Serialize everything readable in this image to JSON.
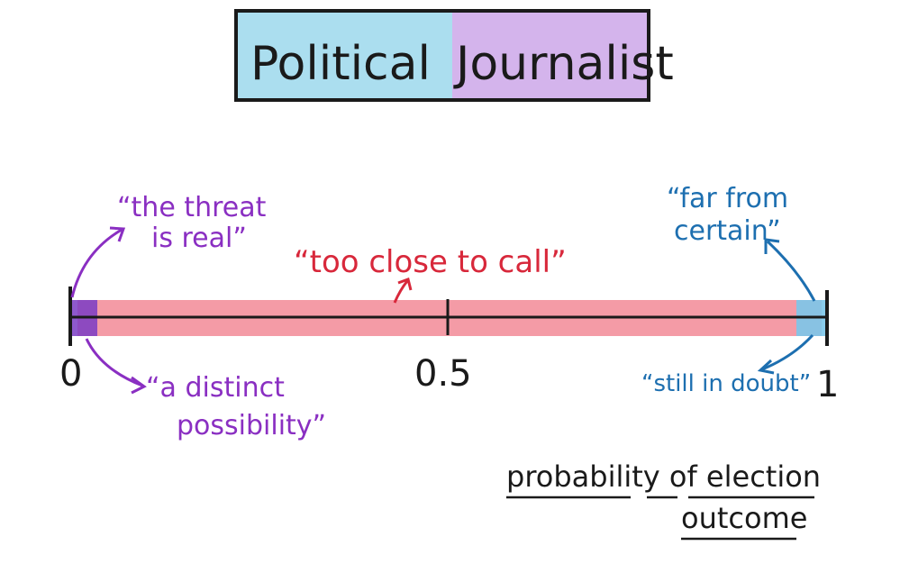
{
  "title": {
    "word1": "Political",
    "word2": "Journalist"
  },
  "colors": {
    "purple": "#8a2fc2",
    "blue": "#1d6fb0",
    "red": "#d8283b",
    "red_band": "#f28a96",
    "title_left_fill": "#8fd3ea",
    "title_right_fill": "#c59be6",
    "ink": "#1a1a1a"
  },
  "axis": {
    "label_left": "0",
    "label_mid": "0.5",
    "label_right": "1",
    "caption_line1": "probability of election",
    "caption_line2": "outcome"
  },
  "annotations": {
    "left_top_line1": "“the threat",
    "left_top_line2": "is real”",
    "left_bottom_line1": "“a distinct",
    "left_bottom_line2": "possibility”",
    "middle": "“too close to call”",
    "right_top_line1": "“far from",
    "right_top_line2": "certain”",
    "right_bottom": "“still in doubt”"
  }
}
